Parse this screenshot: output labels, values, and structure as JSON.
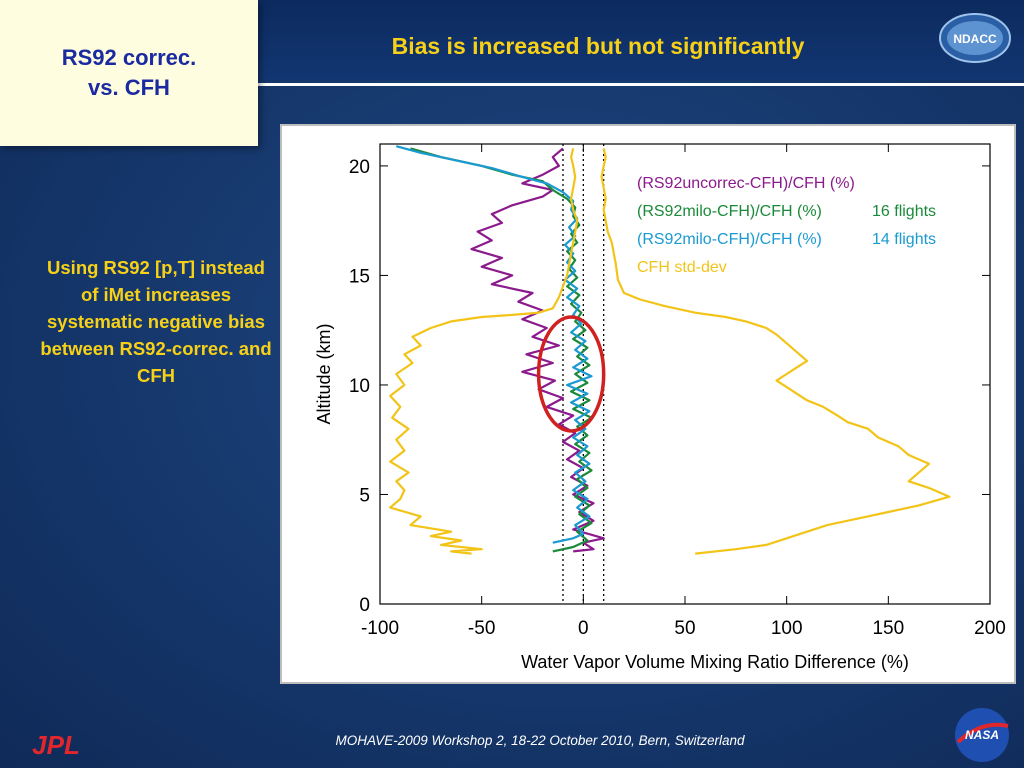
{
  "slide": {
    "box_title": "RS92 correc.\nvs. CFH",
    "heading": "Bias is increased but not significantly",
    "side_note": "Using RS92 [p,T] instead of iMet increases systematic negative bias between RS92-correc. and CFH",
    "footer": "MOHAVE-2009 Workshop 2, 18-22 October 2010, Bern, Switzerland",
    "logos": {
      "ndacc": "NDACC",
      "jpl": "JPL",
      "nasa": "NASA"
    }
  },
  "chart_data": {
    "type": "line",
    "xlabel": "Water Vapor Volume Mixing Ratio Difference (%)",
    "ylabel": "Altitude (km)",
    "xlim": [
      -100,
      200
    ],
    "ylim": [
      0,
      21
    ],
    "xticks": [
      -100,
      -50,
      0,
      50,
      100,
      150,
      200
    ],
    "yticks": [
      0,
      5,
      10,
      15,
      20
    ],
    "reference_lines_x": [
      -10,
      0,
      10
    ],
    "annotation": {
      "shape": "ellipse",
      "color": "#d02020",
      "center": [
        -6,
        10.5
      ],
      "half_width": 16,
      "half_height": 2.6
    },
    "series": [
      {
        "name": "(RS92uncorrec-CFH)/CFH (%)",
        "legend_label": "(RS92uncorrec-CFH)/CFH (%)",
        "color": "#8b1a8c",
        "points": [
          [
            -5,
            2.4
          ],
          [
            5,
            2.5
          ],
          [
            0,
            2.8
          ],
          [
            10,
            3.0
          ],
          [
            -5,
            3.4
          ],
          [
            5,
            3.8
          ],
          [
            -2,
            4.2
          ],
          [
            5,
            4.6
          ],
          [
            -5,
            5.0
          ],
          [
            2,
            5.4
          ],
          [
            -6,
            5.8
          ],
          [
            0,
            6.2
          ],
          [
            -8,
            6.6
          ],
          [
            -2,
            7.0
          ],
          [
            -10,
            7.4
          ],
          [
            -4,
            7.8
          ],
          [
            -12,
            8.2
          ],
          [
            -5,
            8.6
          ],
          [
            -18,
            9.0
          ],
          [
            -10,
            9.4
          ],
          [
            -22,
            9.8
          ],
          [
            -14,
            10.2
          ],
          [
            -30,
            10.6
          ],
          [
            -15,
            11.0
          ],
          [
            -28,
            11.4
          ],
          [
            -12,
            11.8
          ],
          [
            -25,
            12.2
          ],
          [
            -18,
            12.6
          ],
          [
            -30,
            13.0
          ],
          [
            -20,
            13.4
          ],
          [
            -32,
            13.8
          ],
          [
            -25,
            14.2
          ],
          [
            -45,
            14.6
          ],
          [
            -35,
            15.0
          ],
          [
            -50,
            15.4
          ],
          [
            -40,
            15.8
          ],
          [
            -55,
            16.2
          ],
          [
            -45,
            16.6
          ],
          [
            -52,
            17.0
          ],
          [
            -40,
            17.4
          ],
          [
            -45,
            17.8
          ],
          [
            -35,
            18.2
          ],
          [
            -20,
            18.6
          ],
          [
            -15,
            18.9
          ],
          [
            -30,
            19.2
          ],
          [
            -20,
            19.6
          ],
          [
            -12,
            20.0
          ],
          [
            -15,
            20.4
          ],
          [
            -10,
            20.8
          ]
        ]
      },
      {
        "name": "(RS92milo-CFH)/CFH (%) 16 flights",
        "legend_label": "(RS92milo-CFH)/CFH (%)",
        "legend_suffix": "16 flights",
        "color": "#1a8a3a",
        "points": [
          [
            -15,
            2.4
          ],
          [
            -5,
            2.6
          ],
          [
            2,
            2.9
          ],
          [
            -3,
            3.3
          ],
          [
            4,
            3.7
          ],
          [
            -2,
            4.1
          ],
          [
            3,
            4.5
          ],
          [
            -4,
            4.9
          ],
          [
            2,
            5.3
          ],
          [
            -3,
            5.7
          ],
          [
            4,
            6.1
          ],
          [
            -2,
            6.5
          ],
          [
            3,
            6.9
          ],
          [
            -4,
            7.3
          ],
          [
            2,
            7.7
          ],
          [
            -3,
            8.1
          ],
          [
            4,
            8.5
          ],
          [
            -5,
            8.9
          ],
          [
            3,
            9.3
          ],
          [
            -6,
            9.7
          ],
          [
            2,
            10.1
          ],
          [
            -4,
            10.5
          ],
          [
            3,
            10.9
          ],
          [
            -3,
            11.3
          ],
          [
            2,
            11.7
          ],
          [
            -5,
            12.1
          ],
          [
            1,
            12.5
          ],
          [
            -4,
            12.9
          ],
          [
            -1,
            13.3
          ],
          [
            -6,
            13.7
          ],
          [
            -2,
            14.1
          ],
          [
            -8,
            14.5
          ],
          [
            -3,
            14.9
          ],
          [
            -7,
            15.3
          ],
          [
            -4,
            15.7
          ],
          [
            -8,
            16.1
          ],
          [
            -3,
            16.5
          ],
          [
            -6,
            16.9
          ],
          [
            -2,
            17.3
          ],
          [
            -5,
            17.7
          ],
          [
            -4,
            18.1
          ],
          [
            -8,
            18.5
          ],
          [
            -15,
            18.9
          ],
          [
            -20,
            19.3
          ],
          [
            -35,
            19.6
          ],
          [
            -50,
            20.0
          ],
          [
            -70,
            20.4
          ],
          [
            -85,
            20.8
          ]
        ]
      },
      {
        "name": "(RS92milo-CFH)/CFH (%) 14 flights",
        "legend_label": "(RS92milo-CFH)/CFH (%)",
        "legend_suffix": "14 flights",
        "color": "#1a9ad0",
        "points": [
          [
            -15,
            2.8
          ],
          [
            -5,
            3.0
          ],
          [
            0,
            3.2
          ],
          [
            -4,
            3.6
          ],
          [
            3,
            4.0
          ],
          [
            -3,
            4.4
          ],
          [
            2,
            4.8
          ],
          [
            -5,
            5.2
          ],
          [
            1,
            5.6
          ],
          [
            -4,
            6.0
          ],
          [
            3,
            6.4
          ],
          [
            -3,
            6.8
          ],
          [
            2,
            7.2
          ],
          [
            -5,
            7.6
          ],
          [
            1,
            8.0
          ],
          [
            -4,
            8.4
          ],
          [
            3,
            8.8
          ],
          [
            -6,
            9.2
          ],
          [
            2,
            9.6
          ],
          [
            -8,
            10.0
          ],
          [
            4,
            10.4
          ],
          [
            -5,
            10.8
          ],
          [
            2,
            11.2
          ],
          [
            -4,
            11.6
          ],
          [
            1,
            12.0
          ],
          [
            -6,
            12.4
          ],
          [
            -1,
            12.8
          ],
          [
            -5,
            13.2
          ],
          [
            -2,
            13.6
          ],
          [
            -8,
            14.0
          ],
          [
            -3,
            14.4
          ],
          [
            -9,
            14.8
          ],
          [
            -4,
            15.2
          ],
          [
            -8,
            15.6
          ],
          [
            -5,
            16.0
          ],
          [
            -9,
            16.4
          ],
          [
            -4,
            16.8
          ],
          [
            -7,
            17.2
          ],
          [
            -3,
            17.6
          ],
          [
            -6,
            18.0
          ],
          [
            -5,
            18.4
          ],
          [
            -10,
            18.8
          ],
          [
            -18,
            19.2
          ],
          [
            -30,
            19.5
          ],
          [
            -45,
            19.9
          ],
          [
            -65,
            20.3
          ],
          [
            -80,
            20.6
          ],
          [
            -92,
            20.9
          ]
        ]
      },
      {
        "name": "CFH std-dev",
        "legend_label": "CFH std-dev",
        "color": "#f2c418",
        "points": [
          [
            -55,
            2.3
          ],
          [
            -65,
            2.4
          ],
          [
            -50,
            2.5
          ],
          [
            -70,
            2.7
          ],
          [
            -60,
            2.9
          ],
          [
            -75,
            3.1
          ],
          [
            -65,
            3.3
          ],
          [
            -85,
            3.6
          ],
          [
            -80,
            4.0
          ],
          [
            -95,
            4.4
          ],
          [
            -90,
            4.8
          ],
          [
            -88,
            5.2
          ],
          [
            -92,
            5.6
          ],
          [
            -86,
            6.0
          ],
          [
            -95,
            6.5
          ],
          [
            -88,
            7.0
          ],
          [
            -92,
            7.5
          ],
          [
            -86,
            8.0
          ],
          [
            -94,
            8.5
          ],
          [
            -90,
            9.0
          ],
          [
            -95,
            9.5
          ],
          [
            -88,
            10.0
          ],
          [
            -92,
            10.5
          ],
          [
            -84,
            11.0
          ],
          [
            -88,
            11.4
          ],
          [
            -80,
            11.8
          ],
          [
            -84,
            12.2
          ],
          [
            -75,
            12.6
          ],
          [
            -65,
            12.9
          ],
          [
            -50,
            13.1
          ],
          [
            -35,
            13.2
          ],
          [
            -22,
            13.3
          ],
          [
            -15,
            13.5
          ],
          [
            -12,
            14.0
          ],
          [
            -10,
            14.5
          ],
          [
            -8,
            15.0
          ],
          [
            -7,
            15.5
          ],
          [
            -6,
            16.0
          ],
          [
            -5,
            16.5
          ],
          [
            -4,
            17.0
          ],
          [
            -3,
            17.5
          ],
          [
            -5,
            18.0
          ],
          [
            -6,
            18.5
          ],
          [
            -5,
            19.0
          ],
          [
            -4,
            19.5
          ],
          [
            -5,
            20.0
          ],
          [
            -6,
            20.4
          ],
          [
            -5,
            20.8
          ],
          [
            null,
            null
          ],
          [
            55,
            2.3
          ],
          [
            75,
            2.5
          ],
          [
            90,
            2.7
          ],
          [
            100,
            3.0
          ],
          [
            110,
            3.3
          ],
          [
            120,
            3.6
          ],
          [
            135,
            3.9
          ],
          [
            150,
            4.2
          ],
          [
            165,
            4.5
          ],
          [
            180,
            4.9
          ],
          [
            170,
            5.3
          ],
          [
            160,
            5.6
          ],
          [
            165,
            6.0
          ],
          [
            170,
            6.4
          ],
          [
            160,
            6.8
          ],
          [
            155,
            7.2
          ],
          [
            145,
            7.6
          ],
          [
            140,
            8.0
          ],
          [
            130,
            8.3
          ],
          [
            125,
            8.6
          ],
          [
            118,
            9.0
          ],
          [
            110,
            9.3
          ],
          [
            105,
            9.6
          ],
          [
            100,
            9.9
          ],
          [
            95,
            10.2
          ],
          [
            100,
            10.5
          ],
          [
            105,
            10.8
          ],
          [
            110,
            11.1
          ],
          [
            105,
            11.5
          ],
          [
            100,
            11.9
          ],
          [
            95,
            12.3
          ],
          [
            90,
            12.6
          ],
          [
            80,
            12.9
          ],
          [
            70,
            13.1
          ],
          [
            55,
            13.3
          ],
          [
            40,
            13.6
          ],
          [
            28,
            13.9
          ],
          [
            20,
            14.2
          ],
          [
            17,
            14.8
          ],
          [
            16,
            15.5
          ],
          [
            15,
            16.0
          ],
          [
            14,
            16.5
          ],
          [
            12,
            17.0
          ],
          [
            11,
            17.5
          ],
          [
            10,
            18.0
          ],
          [
            11,
            18.5
          ],
          [
            10,
            19.0
          ],
          [
            9,
            19.5
          ],
          [
            10,
            20.0
          ],
          [
            11,
            20.4
          ],
          [
            10,
            20.8
          ]
        ]
      }
    ]
  }
}
